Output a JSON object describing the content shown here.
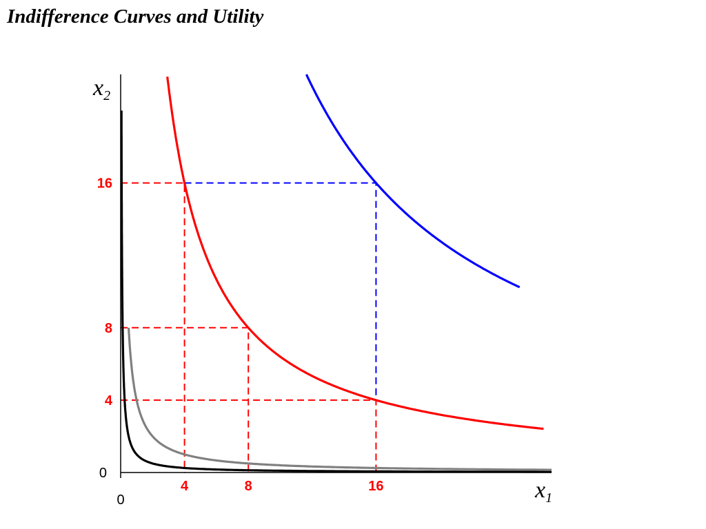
{
  "page": {
    "title": "Indifference Curves and Utility"
  },
  "chart_data": {
    "type": "line",
    "title": "Indifference Curves and Utility",
    "xlabel": {
      "var": "x",
      "sub": "1"
    },
    "ylabel": {
      "var": "x",
      "sub": "2"
    },
    "origin_labels": {
      "x": "0",
      "y": "0"
    },
    "xlim": [
      0,
      27
    ],
    "ylim": [
      0,
      22
    ],
    "x_ticks": [
      {
        "value": 4,
        "label": "4"
      },
      {
        "value": 8,
        "label": "8"
      },
      {
        "value": 16,
        "label": "16"
      }
    ],
    "y_ticks": [
      {
        "value": 4,
        "label": "4"
      },
      {
        "value": 8,
        "label": "8"
      },
      {
        "value": 16,
        "label": "16"
      }
    ],
    "tick_color": "#ff0000",
    "series": [
      {
        "product": 1,
        "color": "#000000",
        "x_min": 0.05,
        "x_max": 27
      },
      {
        "product": 4,
        "color": "#808080",
        "x_min": 0.5,
        "x_max": 27
      },
      {
        "product": 64,
        "color": "#ff0000",
        "x_min": 2.4,
        "x_max": 26.5
      },
      {
        "product": 256,
        "color": "#0000ff",
        "x_min": 9.7,
        "x_max": 25
      }
    ],
    "reference_lines": [
      {
        "color": "#ff0000",
        "points": [
          [
            0,
            16
          ],
          [
            4,
            16
          ],
          [
            4,
            0
          ]
        ]
      },
      {
        "color": "#0000ff",
        "points": [
          [
            4,
            16
          ],
          [
            16,
            16
          ],
          [
            16,
            4
          ]
        ]
      },
      {
        "color": "#ff0000",
        "points": [
          [
            0,
            8
          ],
          [
            8,
            8
          ],
          [
            8,
            0
          ]
        ]
      },
      {
        "color": "#ff0000",
        "points": [
          [
            0,
            4
          ],
          [
            16,
            4
          ],
          [
            16,
            0
          ]
        ]
      }
    ],
    "grid": false,
    "legend": "none"
  }
}
